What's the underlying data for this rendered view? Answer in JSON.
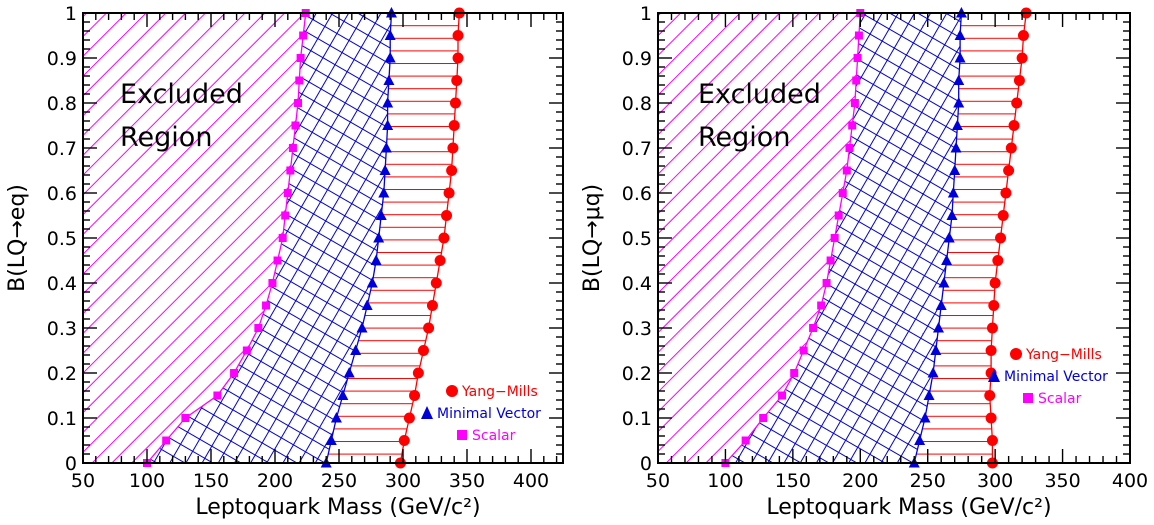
{
  "colors": {
    "yang_mills": "#ff0000",
    "minimal_vector": "#0000dd",
    "scalar": "#ff00ff"
  },
  "chart_data": [
    {
      "type": "line",
      "xlabel": "Leptoquark Mass (GeV/c²)",
      "ylabel": "B(LQ→eq)",
      "xlim": [
        50,
        425
      ],
      "ylim": [
        0,
        1
      ],
      "xticks": [
        "50",
        "100",
        "150",
        "200",
        "250",
        "300",
        "350",
        "400"
      ],
      "yticks": [
        "0",
        "0.1",
        "0.2",
        "0.3",
        "0.4",
        "0.5",
        "0.6",
        "0.7",
        "0.8",
        "0.9",
        "1"
      ],
      "grid": false,
      "annotation": [
        "Excluded",
        "Region"
      ],
      "legend_position": "bottom-right",
      "fill": "hatched exclusion region left of each curve",
      "y": [
        0,
        0.05,
        0.1,
        0.15,
        0.2,
        0.25,
        0.3,
        0.35,
        0.4,
        0.45,
        0.5,
        0.55,
        0.6,
        0.65,
        0.7,
        0.75,
        0.8,
        0.85,
        0.9,
        0.95,
        1.0
      ],
      "series": [
        {
          "name": "Yang−Mills",
          "color": "#ff0000",
          "marker": "circle",
          "hatch": "horizontal",
          "x": [
            298,
            301,
            305,
            309,
            312,
            316,
            320,
            323,
            326,
            329,
            332,
            334,
            336,
            338,
            339,
            340,
            341,
            342,
            343,
            343,
            344
          ]
        },
        {
          "name": "Minimal Vector",
          "color": "#0000dd",
          "marker": "triangle",
          "hatch": "cross",
          "x": [
            240,
            244,
            248,
            253,
            258,
            263,
            268,
            272,
            276,
            279,
            281,
            283,
            285,
            286,
            287,
            288,
            288,
            289,
            290,
            290,
            291
          ]
        },
        {
          "name": "Scalar",
          "color": "#ff00ff",
          "marker": "square",
          "hatch": "diagonal",
          "x": [
            100,
            115,
            130,
            155,
            168,
            178,
            187,
            193,
            198,
            202,
            206,
            208,
            210,
            212,
            214,
            216,
            218,
            219,
            220,
            222,
            224
          ]
        }
      ]
    },
    {
      "type": "line",
      "xlabel": "Leptoquark Mass (GeV/c²)",
      "ylabel": "B(LQ→μq)",
      "xlim": [
        50,
        400
      ],
      "ylim": [
        0,
        1
      ],
      "xticks": [
        "50",
        "100",
        "150",
        "200",
        "250",
        "300",
        "350",
        "400"
      ],
      "yticks": [
        "0",
        "0.1",
        "0.2",
        "0.3",
        "0.4",
        "0.5",
        "0.6",
        "0.7",
        "0.8",
        "0.9",
        "1"
      ],
      "grid": false,
      "annotation": [
        "Excluded",
        "Region"
      ],
      "legend_position": "center-right",
      "fill": "hatched exclusion region left of each curve",
      "y": [
        0,
        0.05,
        0.1,
        0.15,
        0.2,
        0.25,
        0.3,
        0.35,
        0.4,
        0.45,
        0.5,
        0.55,
        0.6,
        0.65,
        0.7,
        0.75,
        0.8,
        0.85,
        0.9,
        0.95,
        1.0
      ],
      "series": [
        {
          "name": "Yang−Mills",
          "color": "#ff0000",
          "marker": "circle",
          "hatch": "horizontal",
          "x": [
            298,
            298,
            297,
            296,
            297,
            297,
            298,
            299,
            300,
            302,
            304,
            306,
            308,
            310,
            312,
            314,
            316,
            318,
            320,
            321,
            323
          ]
        },
        {
          "name": "Minimal Vector",
          "color": "#0000dd",
          "marker": "triangle",
          "hatch": "cross",
          "x": [
            240,
            244,
            248,
            251,
            254,
            256,
            258,
            260,
            262,
            264,
            266,
            268,
            269,
            270,
            271,
            272,
            273,
            273,
            274,
            274,
            275
          ]
        },
        {
          "name": "Scalar",
          "color": "#ff00ff",
          "marker": "square",
          "hatch": "diagonal",
          "x": [
            100,
            115,
            128,
            142,
            151,
            158,
            165,
            171,
            175,
            178,
            181,
            184,
            187,
            190,
            192,
            194,
            196,
            197,
            198,
            199,
            200
          ]
        }
      ]
    }
  ]
}
